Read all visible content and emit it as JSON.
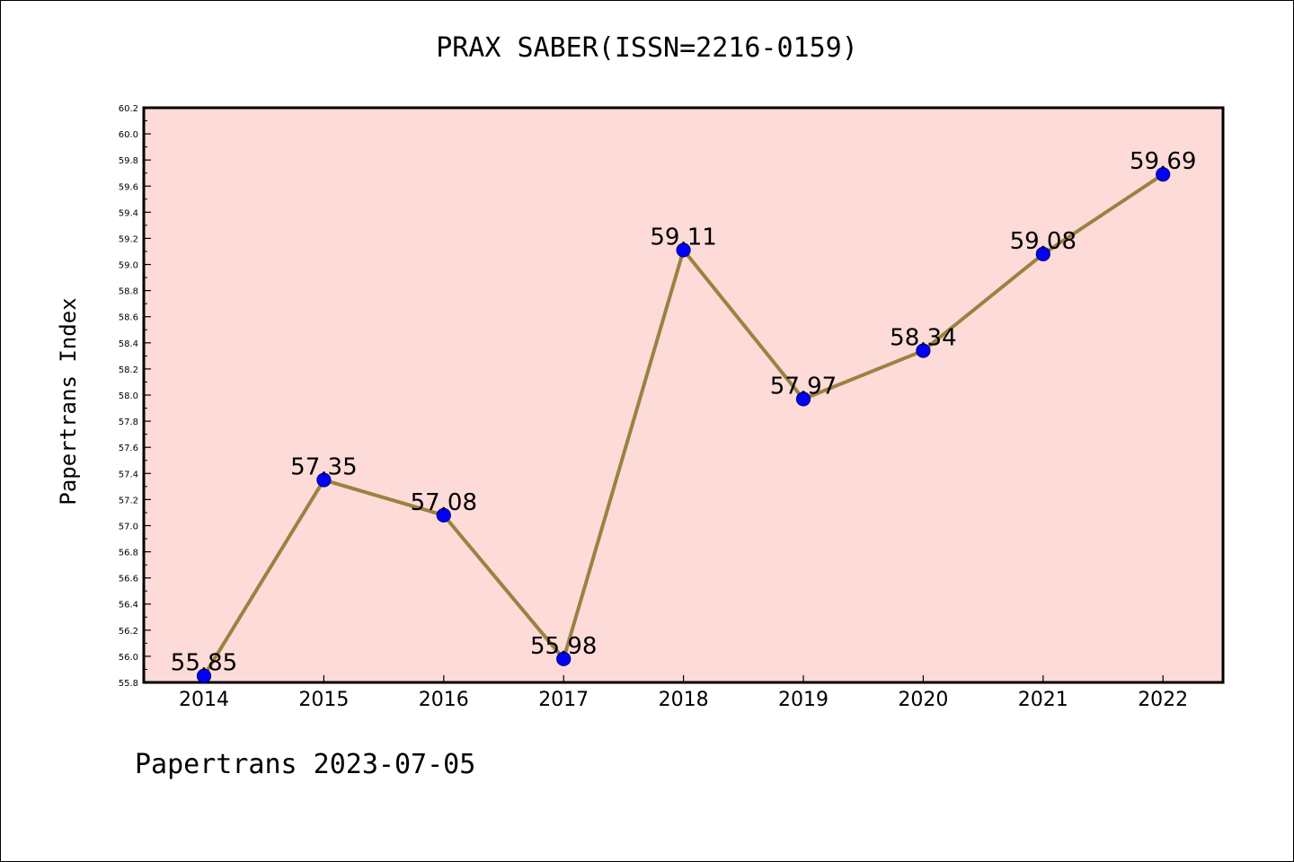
{
  "chart_data": {
    "type": "line",
    "title": "PRAX SABER(ISSN=2216-0159)",
    "xlabel": "",
    "ylabel": "Papertrans Index",
    "categories": [
      "2014",
      "2015",
      "2016",
      "2017",
      "2018",
      "2019",
      "2020",
      "2021",
      "2022"
    ],
    "values": [
      55.85,
      57.35,
      57.08,
      55.98,
      59.11,
      57.97,
      58.34,
      59.08,
      59.69
    ],
    "value_labels": [
      "55.85",
      "57.35",
      "57.08",
      "55.98",
      "59.11",
      "57.97",
      "58.34",
      "59.08",
      "59.69"
    ],
    "ylim": [
      55.8,
      60.2
    ],
    "yticks": [
      "55.8",
      "56.0",
      "56.2",
      "56.4",
      "56.6",
      "56.8",
      "57.0",
      "57.2",
      "57.4",
      "57.6",
      "57.8",
      "58.0",
      "58.2",
      "58.4",
      "58.6",
      "58.8",
      "59.0",
      "59.2",
      "59.4",
      "59.6",
      "59.8",
      "60.0",
      "60.2"
    ],
    "grid": false,
    "colors": {
      "plot_background": "#fddbd9",
      "line": "#9a8240",
      "marker": "#0000ff",
      "marker_edge": "#000080"
    }
  },
  "footer": {
    "text": "Papertrans 2023-07-05"
  }
}
